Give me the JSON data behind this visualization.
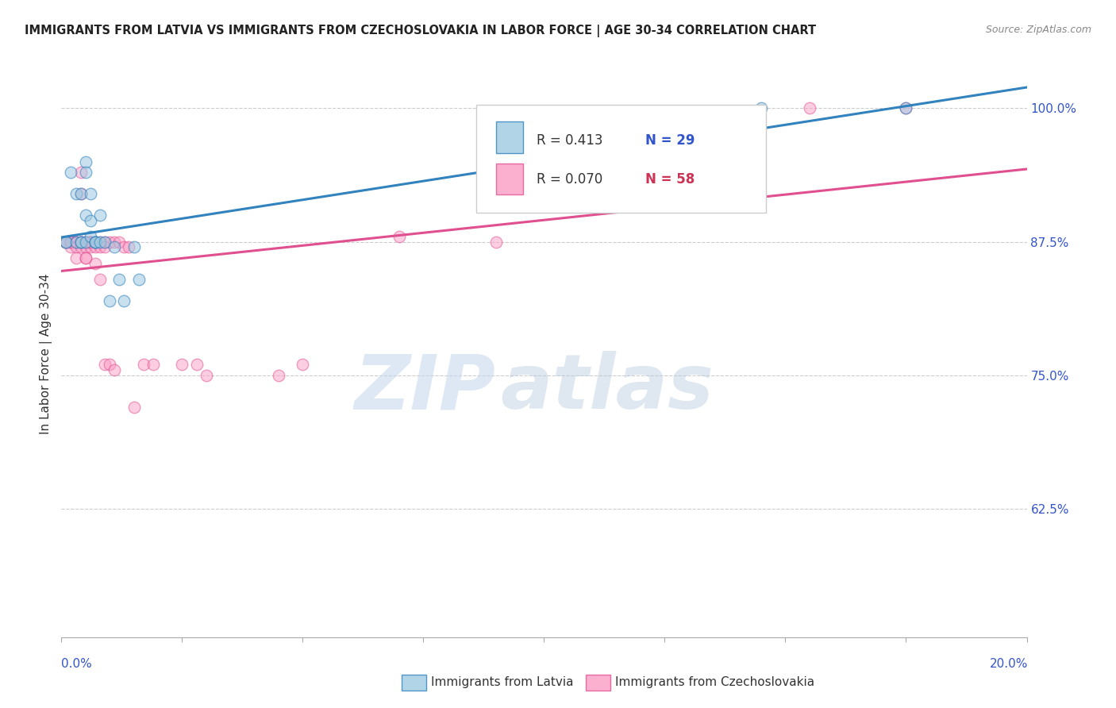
{
  "title": "IMMIGRANTS FROM LATVIA VS IMMIGRANTS FROM CZECHOSLOVAKIA IN LABOR FORCE | AGE 30-34 CORRELATION CHART",
  "source": "Source: ZipAtlas.com",
  "ylabel": "In Labor Force | Age 30-34",
  "ylabel_right_ticks": [
    0.625,
    0.75,
    0.875,
    1.0
  ],
  "ylabel_right_labels": [
    "62.5%",
    "75.0%",
    "87.5%",
    "100.0%"
  ],
  "xlim": [
    0.0,
    0.2
  ],
  "ylim": [
    0.505,
    1.035
  ],
  "legend_r_latvia": "R = 0.413",
  "legend_n_latvia": "N = 29",
  "legend_r_czech": "R = 0.070",
  "legend_n_czech": "N = 58",
  "label_latvia": "Immigrants from Latvia",
  "label_czech": "Immigrants from Czechoslovakia",
  "color_latvia_fill": "#9ecae1",
  "color_latvia_edge": "#3182bd",
  "color_czech_fill": "#fc9dc5",
  "color_czech_edge": "#e05090",
  "color_line_latvia": "#3182bd",
  "color_line_czech": "#e05090",
  "watermark_zip": "ZIP",
  "watermark_atlas": "atlas",
  "latvia_x": [
    0.001,
    0.001,
    0.002,
    0.003,
    0.003,
    0.004,
    0.004,
    0.004,
    0.005,
    0.005,
    0.005,
    0.005,
    0.006,
    0.006,
    0.006,
    0.007,
    0.007,
    0.007,
    0.008,
    0.008,
    0.009,
    0.01,
    0.011,
    0.012,
    0.013,
    0.015,
    0.016,
    0.145,
    0.175
  ],
  "latvia_y": [
    0.875,
    0.875,
    0.94,
    0.92,
    0.875,
    0.92,
    0.875,
    0.875,
    0.95,
    0.94,
    0.9,
    0.875,
    0.92,
    0.895,
    0.88,
    0.875,
    0.875,
    0.875,
    0.9,
    0.875,
    0.875,
    0.82,
    0.87,
    0.84,
    0.82,
    0.87,
    0.84,
    1.0,
    1.0
  ],
  "czech_x": [
    0.001,
    0.001,
    0.001,
    0.002,
    0.002,
    0.002,
    0.002,
    0.003,
    0.003,
    0.003,
    0.003,
    0.003,
    0.004,
    0.004,
    0.004,
    0.004,
    0.004,
    0.004,
    0.005,
    0.005,
    0.005,
    0.005,
    0.005,
    0.005,
    0.006,
    0.006,
    0.006,
    0.006,
    0.006,
    0.007,
    0.007,
    0.007,
    0.007,
    0.008,
    0.008,
    0.008,
    0.009,
    0.009,
    0.009,
    0.01,
    0.01,
    0.011,
    0.011,
    0.012,
    0.013,
    0.014,
    0.015,
    0.017,
    0.019,
    0.025,
    0.028,
    0.03,
    0.045,
    0.05,
    0.07,
    0.09,
    0.155,
    0.175
  ],
  "czech_y": [
    0.875,
    0.875,
    0.875,
    0.875,
    0.875,
    0.87,
    0.875,
    0.875,
    0.875,
    0.875,
    0.87,
    0.86,
    0.875,
    0.875,
    0.875,
    0.94,
    0.92,
    0.87,
    0.875,
    0.875,
    0.875,
    0.87,
    0.86,
    0.86,
    0.875,
    0.875,
    0.87,
    0.875,
    0.875,
    0.875,
    0.875,
    0.87,
    0.855,
    0.875,
    0.87,
    0.84,
    0.875,
    0.87,
    0.76,
    0.875,
    0.76,
    0.875,
    0.755,
    0.875,
    0.87,
    0.87,
    0.72,
    0.76,
    0.76,
    0.76,
    0.76,
    0.75,
    0.75,
    0.76,
    0.88,
    0.875,
    1.0,
    1.0
  ]
}
